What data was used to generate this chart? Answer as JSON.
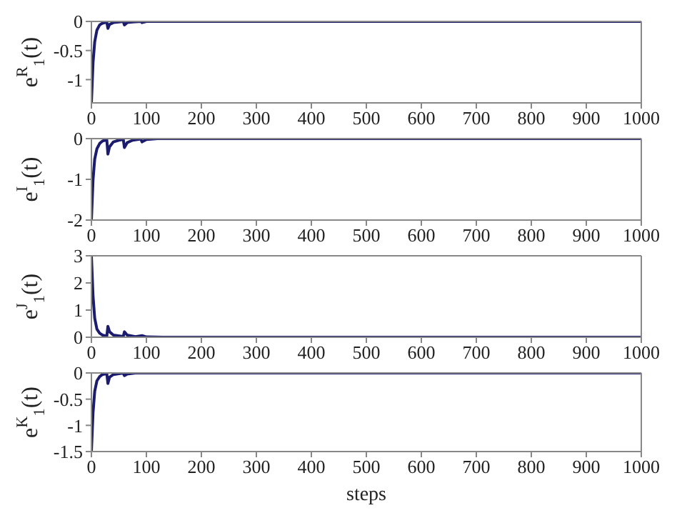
{
  "chart_data": [
    {
      "type": "line",
      "ylabel": "e$^{R}$$_{1}$(t)",
      "xlim": [
        0,
        1000
      ],
      "xticks": [
        0,
        100,
        200,
        300,
        400,
        500,
        600,
        700,
        800,
        900,
        1000
      ],
      "ylim": [
        -1.4,
        0
      ],
      "yticks": [
        -1,
        -0.5,
        0
      ],
      "grid": false,
      "legend": false,
      "marker": "none",
      "line_style": "solid",
      "series": [
        {
          "color": "#1c1c6e",
          "x": [
            0,
            3,
            6,
            10,
            15,
            20,
            28,
            30,
            33,
            40,
            50,
            58,
            60,
            65,
            75,
            90,
            92,
            100,
            1000
          ],
          "values": [
            -1.4,
            -0.7,
            -0.35,
            -0.15,
            -0.06,
            -0.03,
            -0.01,
            -0.12,
            -0.05,
            -0.02,
            -0.01,
            0,
            -0.06,
            -0.02,
            -0.01,
            0,
            -0.02,
            0,
            0
          ]
        }
      ]
    },
    {
      "type": "line",
      "ylabel": "e$^{I}$$_{1}$(t)",
      "xlim": [
        0,
        1000
      ],
      "xticks": [
        0,
        100,
        200,
        300,
        400,
        500,
        600,
        700,
        800,
        900,
        1000
      ],
      "ylim": [
        -2,
        0
      ],
      "yticks": [
        -2,
        -1,
        0
      ],
      "grid": false,
      "legend": false,
      "marker": "none",
      "line_style": "solid",
      "series": [
        {
          "color": "#1c1c6e",
          "x": [
            0,
            3,
            6,
            10,
            15,
            20,
            28,
            30,
            33,
            40,
            50,
            58,
            60,
            65,
            75,
            90,
            92,
            100,
            120,
            1000
          ],
          "values": [
            -2,
            -1,
            -0.5,
            -0.25,
            -0.12,
            -0.06,
            -0.03,
            -0.38,
            -0.2,
            -0.08,
            -0.04,
            -0.02,
            -0.22,
            -0.1,
            -0.04,
            -0.01,
            -0.08,
            -0.02,
            0,
            0
          ]
        }
      ]
    },
    {
      "type": "line",
      "ylabel": "e$^{J}$$_{1}$(t)",
      "xlim": [
        0,
        1000
      ],
      "xticks": [
        0,
        100,
        200,
        300,
        400,
        500,
        600,
        700,
        800,
        900,
        1000
      ],
      "ylim": [
        0,
        3
      ],
      "yticks": [
        0,
        1,
        2,
        3
      ],
      "grid": false,
      "legend": false,
      "marker": "none",
      "line_style": "solid",
      "series": [
        {
          "color": "#1c1c6e",
          "x": [
            0,
            3,
            6,
            10,
            15,
            20,
            28,
            30,
            33,
            40,
            58,
            60,
            65,
            80,
            92,
            100,
            130,
            1000
          ],
          "values": [
            3,
            1.5,
            0.7,
            0.3,
            0.15,
            0.08,
            0.04,
            0.4,
            0.2,
            0.08,
            0.03,
            0.2,
            0.08,
            0.02,
            0.06,
            0.01,
            0,
            0
          ]
        }
      ]
    },
    {
      "type": "line",
      "xlabel": "steps",
      "ylabel": "e$^{K}$$_{1}$(t)",
      "xlim": [
        0,
        1000
      ],
      "xticks": [
        0,
        100,
        200,
        300,
        400,
        500,
        600,
        700,
        800,
        900,
        1000
      ],
      "ylim": [
        -1.5,
        0
      ],
      "yticks": [
        -1.5,
        -1,
        -0.5,
        0
      ],
      "grid": false,
      "legend": false,
      "marker": "none",
      "line_style": "solid",
      "series": [
        {
          "color": "#1c1c6e",
          "x": [
            0,
            3,
            6,
            10,
            15,
            20,
            28,
            30,
            33,
            40,
            58,
            60,
            65,
            80,
            1000
          ],
          "values": [
            -1.5,
            -0.75,
            -0.35,
            -0.15,
            -0.07,
            -0.03,
            -0.01,
            -0.2,
            -0.08,
            -0.03,
            0,
            -0.05,
            -0.02,
            0,
            0
          ]
        }
      ]
    }
  ]
}
